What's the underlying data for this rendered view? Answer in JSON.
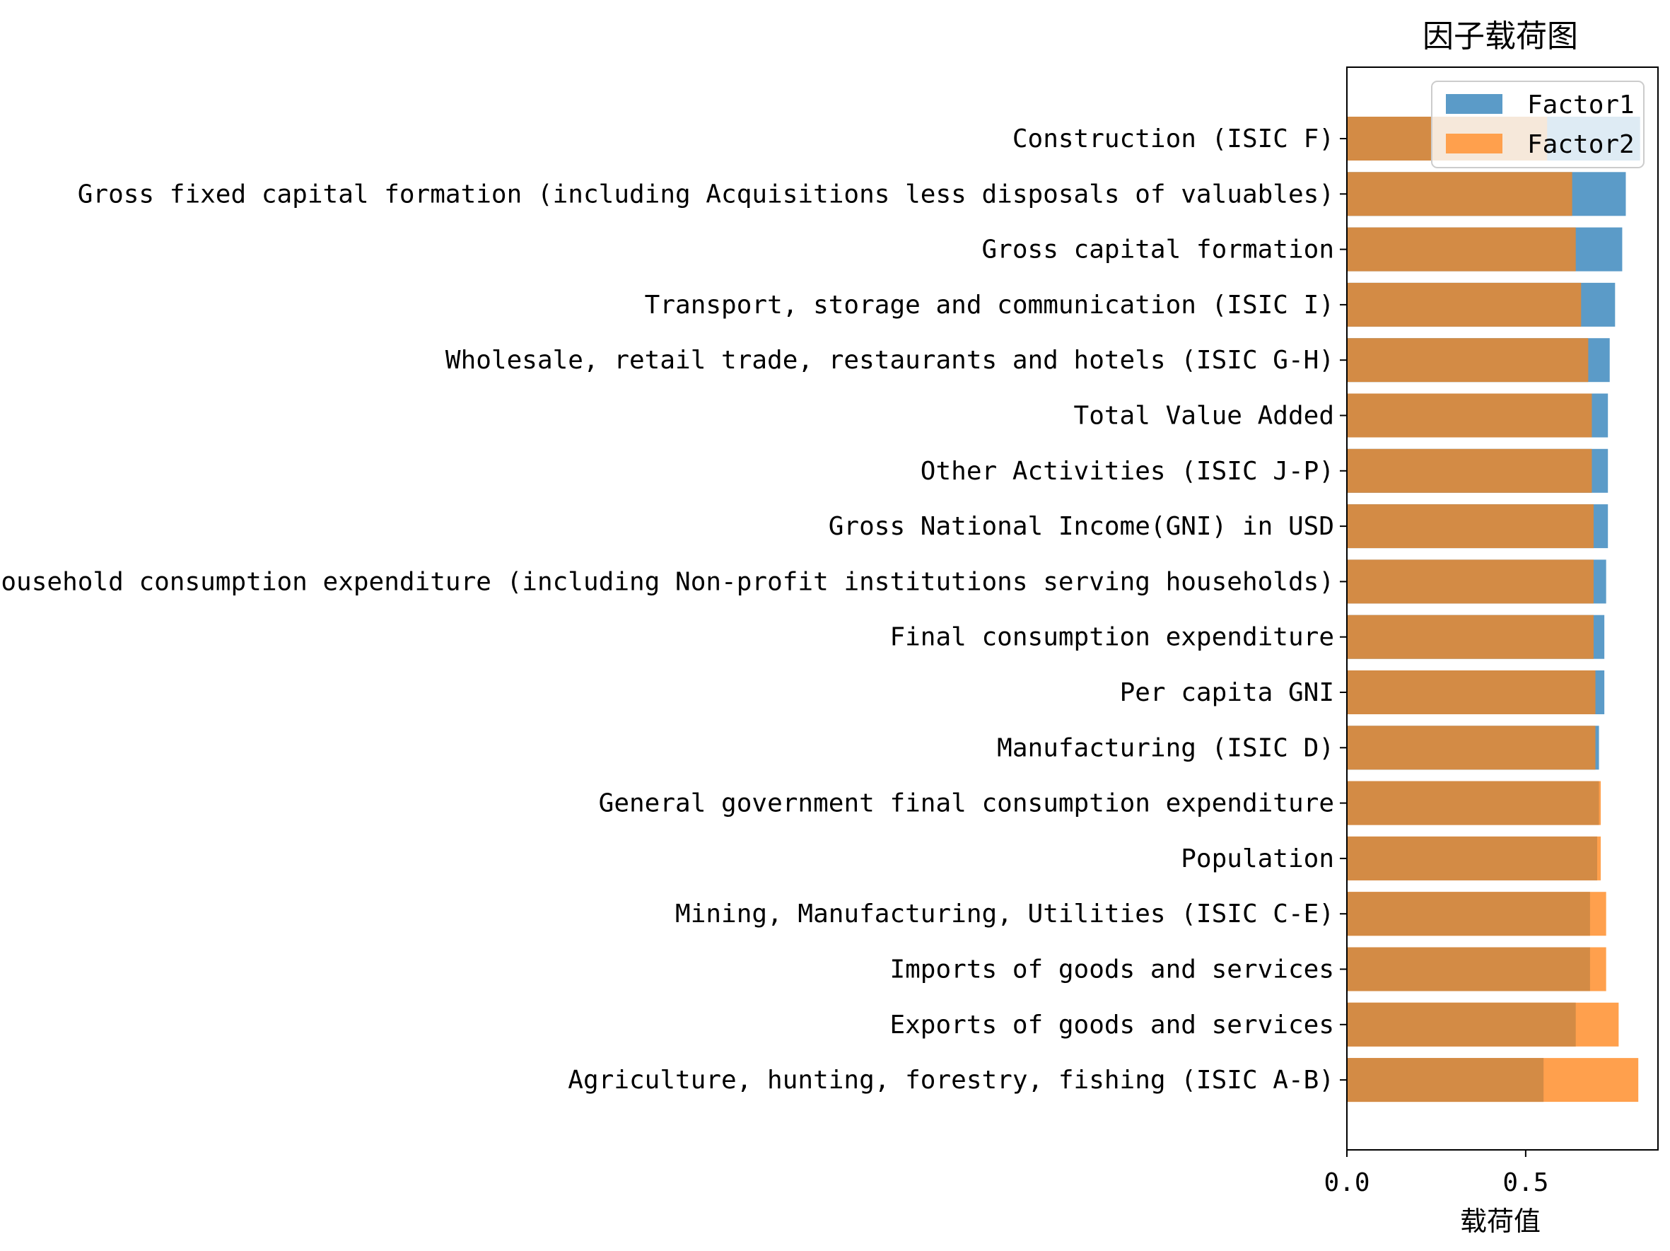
{
  "chart_data": {
    "type": "bar",
    "orientation": "horizontal",
    "title": "因子载荷图",
    "xlabel": "载荷值",
    "ylabel": "",
    "xlim": [
      0,
      0.87
    ],
    "xticks": [
      {
        "value": 0.0,
        "label": "0.0"
      },
      {
        "value": 0.5,
        "label": "0.5"
      }
    ],
    "grid": false,
    "legend_position": "top-right",
    "categories": [
      "Construction (ISIC F)",
      "Gross fixed capital formation (including Acquisitions less disposals of valuables)",
      "Gross capital formation",
      "Transport, storage and communication (ISIC I)",
      "Wholesale, retail trade, restaurants and hotels (ISIC G-H)",
      "Total Value Added",
      "Other Activities (ISIC J-P)",
      "Gross National Income(GNI) in USD",
      "Household consumption expenditure (including Non-profit institutions serving households)",
      "Final consumption expenditure",
      "Per capita GNI",
      "Manufacturing (ISIC D)",
      "General government final consumption expenditure",
      "Population",
      "Mining, Manufacturing, Utilities (ISIC C-E)",
      "Imports of goods and services",
      "Exports of goods and services",
      "Agriculture, hunting, forestry, fishing (ISIC A-B)"
    ],
    "series": [
      {
        "name": "Factor1",
        "color": "#5b9bc8",
        "values": [
          0.82,
          0.78,
          0.77,
          0.75,
          0.735,
          0.73,
          0.73,
          0.73,
          0.725,
          0.72,
          0.72,
          0.705,
          0.705,
          0.7,
          0.68,
          0.68,
          0.64,
          0.55
        ]
      },
      {
        "name": "Factor2",
        "color": "#ffa04d",
        "values": [
          0.56,
          0.63,
          0.64,
          0.655,
          0.675,
          0.685,
          0.685,
          0.69,
          0.69,
          0.69,
          0.695,
          0.695,
          0.71,
          0.71,
          0.725,
          0.725,
          0.76,
          0.815
        ]
      }
    ],
    "overlap_color": "#d38b45"
  }
}
